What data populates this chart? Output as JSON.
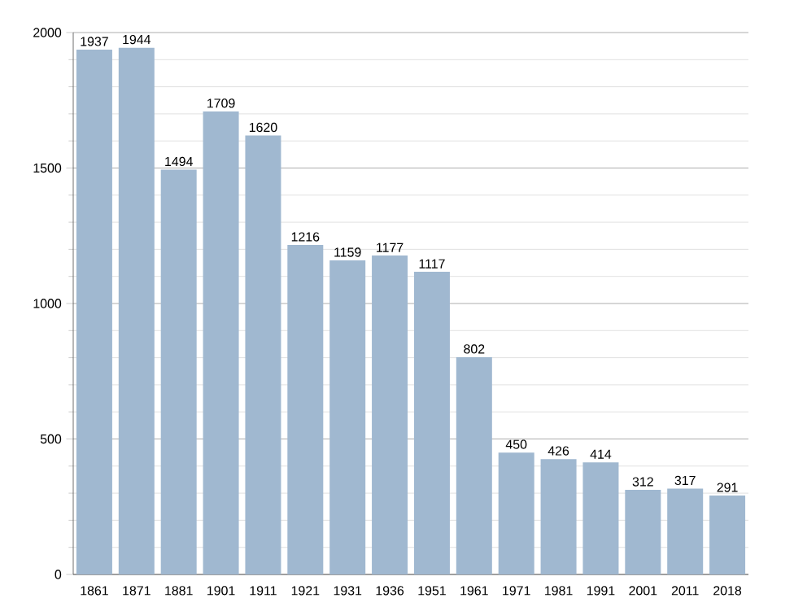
{
  "chart_data": {
    "type": "bar",
    "categories": [
      "1861",
      "1871",
      "1881",
      "1901",
      "1911",
      "1921",
      "1931",
      "1936",
      "1951",
      "1961",
      "1971",
      "1981",
      "1991",
      "2001",
      "2011",
      "2018"
    ],
    "values": [
      1937,
      1944,
      1494,
      1709,
      1620,
      1216,
      1159,
      1177,
      1117,
      802,
      450,
      426,
      414,
      312,
      317,
      291
    ],
    "color": "#a0b8d0",
    "ylim": [
      0,
      2000
    ],
    "yticks": [
      0,
      500,
      1000,
      1500,
      2000
    ],
    "grid": "y",
    "data_labels": true
  }
}
